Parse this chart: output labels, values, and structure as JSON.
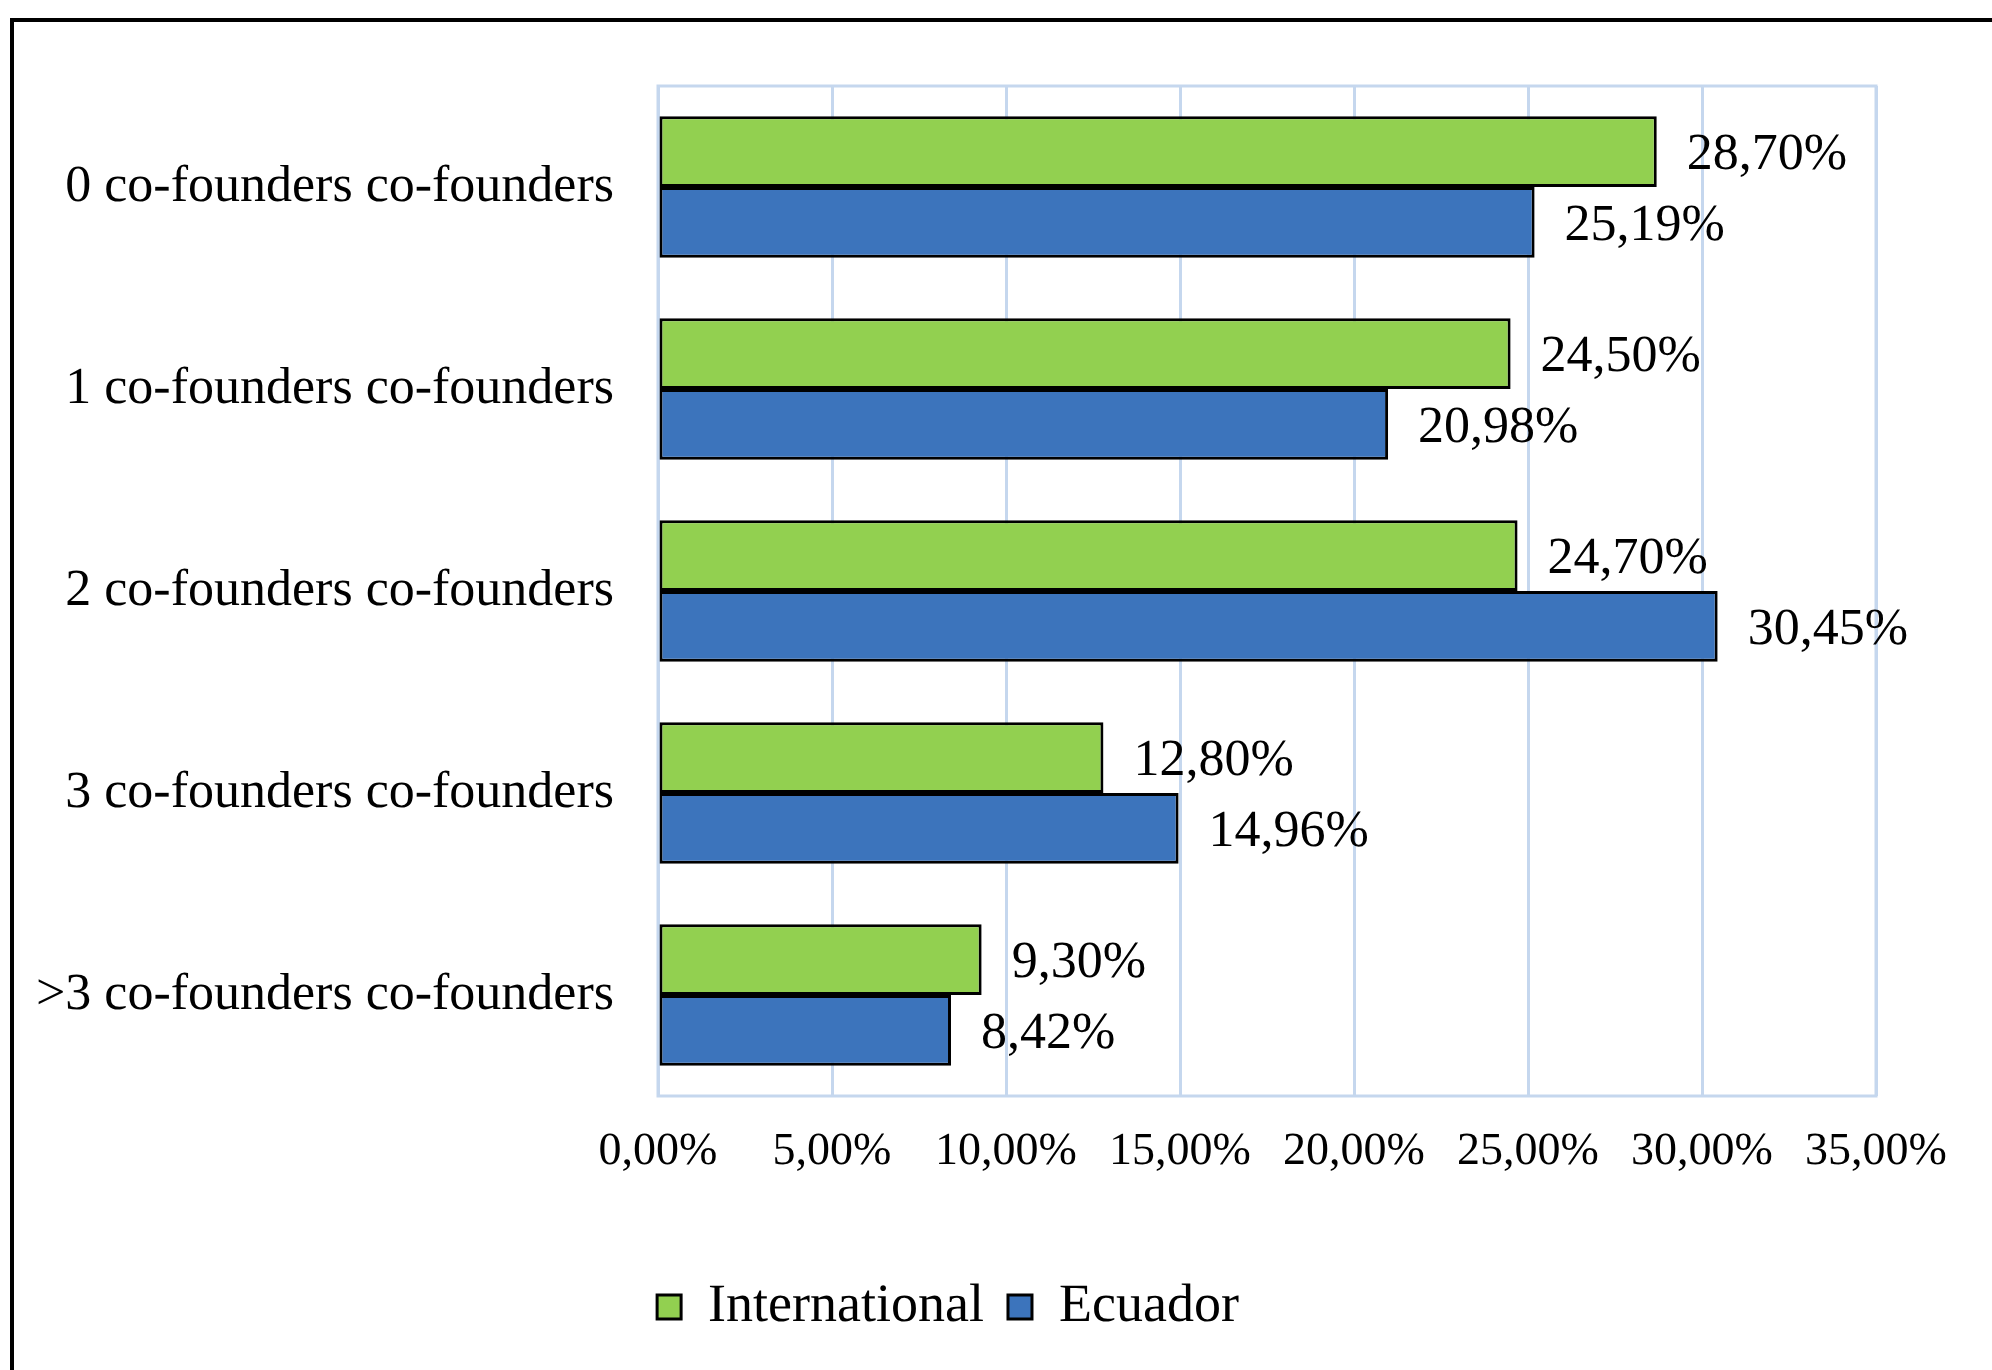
{
  "chart_data": {
    "type": "bar",
    "orientation": "horizontal",
    "categories": [
      "0 co-founders co-founders",
      "1 co-founders co-founders",
      "2 co-founders co-founders",
      "3 co-founders co-founders",
      ">3 co-founders co-founders"
    ],
    "series": [
      {
        "name": "International",
        "color": "#92d050",
        "values": [
          28.7,
          24.5,
          24.7,
          12.8,
          9.3
        ],
        "value_labels": [
          "28,70%",
          "24,50%",
          "24,70%",
          "12,80%",
          "9,30%"
        ]
      },
      {
        "name": "Ecuador",
        "color": "#3c74bc",
        "values": [
          25.19,
          20.98,
          30.45,
          14.96,
          8.42
        ],
        "value_labels": [
          "25,19%",
          "20,98%",
          "30,45%",
          "14,96%",
          "8,42%"
        ]
      }
    ],
    "xlim": [
      0,
      35
    ],
    "xticks": [
      {
        "value": 0,
        "label": "0,00%"
      },
      {
        "value": 5,
        "label": "5,00%"
      },
      {
        "value": 10,
        "label": "10,00%"
      },
      {
        "value": 15,
        "label": "15,00%"
      },
      {
        "value": 20,
        "label": "20,00%"
      },
      {
        "value": 25,
        "label": "25,00%"
      },
      {
        "value": 30,
        "label": "30,00%"
      },
      {
        "value": 35,
        "label": "35,00%"
      }
    ],
    "grid": "x",
    "legend": "bottom"
  }
}
